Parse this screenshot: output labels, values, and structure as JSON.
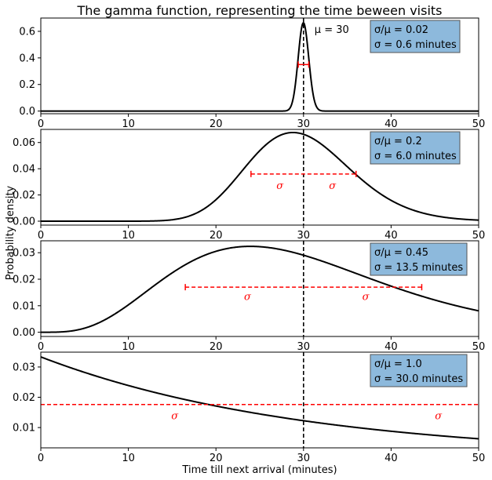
{
  "figure": {
    "title": "The gamma function, representing the time beween visits",
    "xlabel": "Time till next arrival (minutes)",
    "ylabel": "Probability density",
    "mean_annotation": "μ = 30",
    "sigma_symbol": "σ"
  },
  "colors": {
    "curve": "#000000",
    "mean_line": "#000000",
    "sigma": "#ff0000",
    "infobox_fill": "#8db9dc",
    "infobox_edge": "#555555"
  },
  "chart_data": [
    {
      "type": "line",
      "xlim": [
        0,
        50
      ],
      "ylim": [
        -0.02,
        0.7
      ],
      "xticks": [
        "0",
        "10",
        "20",
        "30",
        "40",
        "50"
      ],
      "yticks": [
        "0.0",
        "0.2",
        "0.4",
        "0.6"
      ],
      "mean": 30,
      "cv": 0.02,
      "sigma_minutes": 0.6,
      "sigma_bar": {
        "y": 0.35,
        "x_start": 29.4,
        "x_end": 30.6,
        "style": "solid"
      },
      "info": [
        "σ/μ = 0.02",
        "σ = 0.6 minutes"
      ],
      "show_mean_label": true,
      "sigma_labels": []
    },
    {
      "type": "line",
      "xlim": [
        0,
        50
      ],
      "ylim": [
        -0.003,
        0.07
      ],
      "xticks": [
        "0",
        "10",
        "20",
        "30",
        "40",
        "50"
      ],
      "yticks": [
        "0.00",
        "0.02",
        "0.04",
        "0.06"
      ],
      "mean": 30,
      "cv": 0.2,
      "sigma_minutes": 6.0,
      "sigma_bar": {
        "y": 0.036,
        "x_start": 24,
        "x_end": 36,
        "style": "dashed"
      },
      "info": [
        "σ/μ = 0.2",
        "σ = 6.0 minutes"
      ],
      "show_mean_label": false,
      "sigma_labels": [
        {
          "x": 27.3,
          "y": 0.027
        },
        {
          "x": 33.3,
          "y": 0.027
        }
      ]
    },
    {
      "type": "line",
      "xlim": [
        0,
        50
      ],
      "ylim": [
        -0.0016,
        0.0345
      ],
      "xticks": [
        "0",
        "10",
        "20",
        "30",
        "40",
        "50"
      ],
      "yticks": [
        "0.00",
        "0.01",
        "0.02",
        "0.03"
      ],
      "mean": 30,
      "cv": 0.45,
      "sigma_minutes": 13.5,
      "sigma_bar": {
        "y": 0.017,
        "x_start": 16.5,
        "x_end": 43.5,
        "style": "dashed"
      },
      "info": [
        "σ/μ = 0.45",
        "σ = 13.5 minutes"
      ],
      "show_mean_label": false,
      "sigma_labels": [
        {
          "x": 23.6,
          "y": 0.0133
        },
        {
          "x": 37.1,
          "y": 0.0133
        }
      ]
    },
    {
      "type": "line",
      "xlim": [
        0,
        50
      ],
      "ylim": [
        0.0033,
        0.0349
      ],
      "xticks": [
        "0",
        "10",
        "20",
        "30",
        "40",
        "50"
      ],
      "yticks": [
        "0.01",
        "0.02",
        "0.03"
      ],
      "mean": 30,
      "cv": 1.0,
      "sigma_minutes": 30.0,
      "sigma_bar": {
        "y": 0.0176,
        "x_start": 0,
        "x_end": 50,
        "style": "dashed",
        "extends": true
      },
      "info": [
        "σ/μ = 1.0",
        "σ = 30.0 minutes"
      ],
      "show_mean_label": false,
      "sigma_labels": [
        {
          "x": 15.3,
          "y": 0.0138
        },
        {
          "x": 45.4,
          "y": 0.0138
        }
      ]
    }
  ]
}
